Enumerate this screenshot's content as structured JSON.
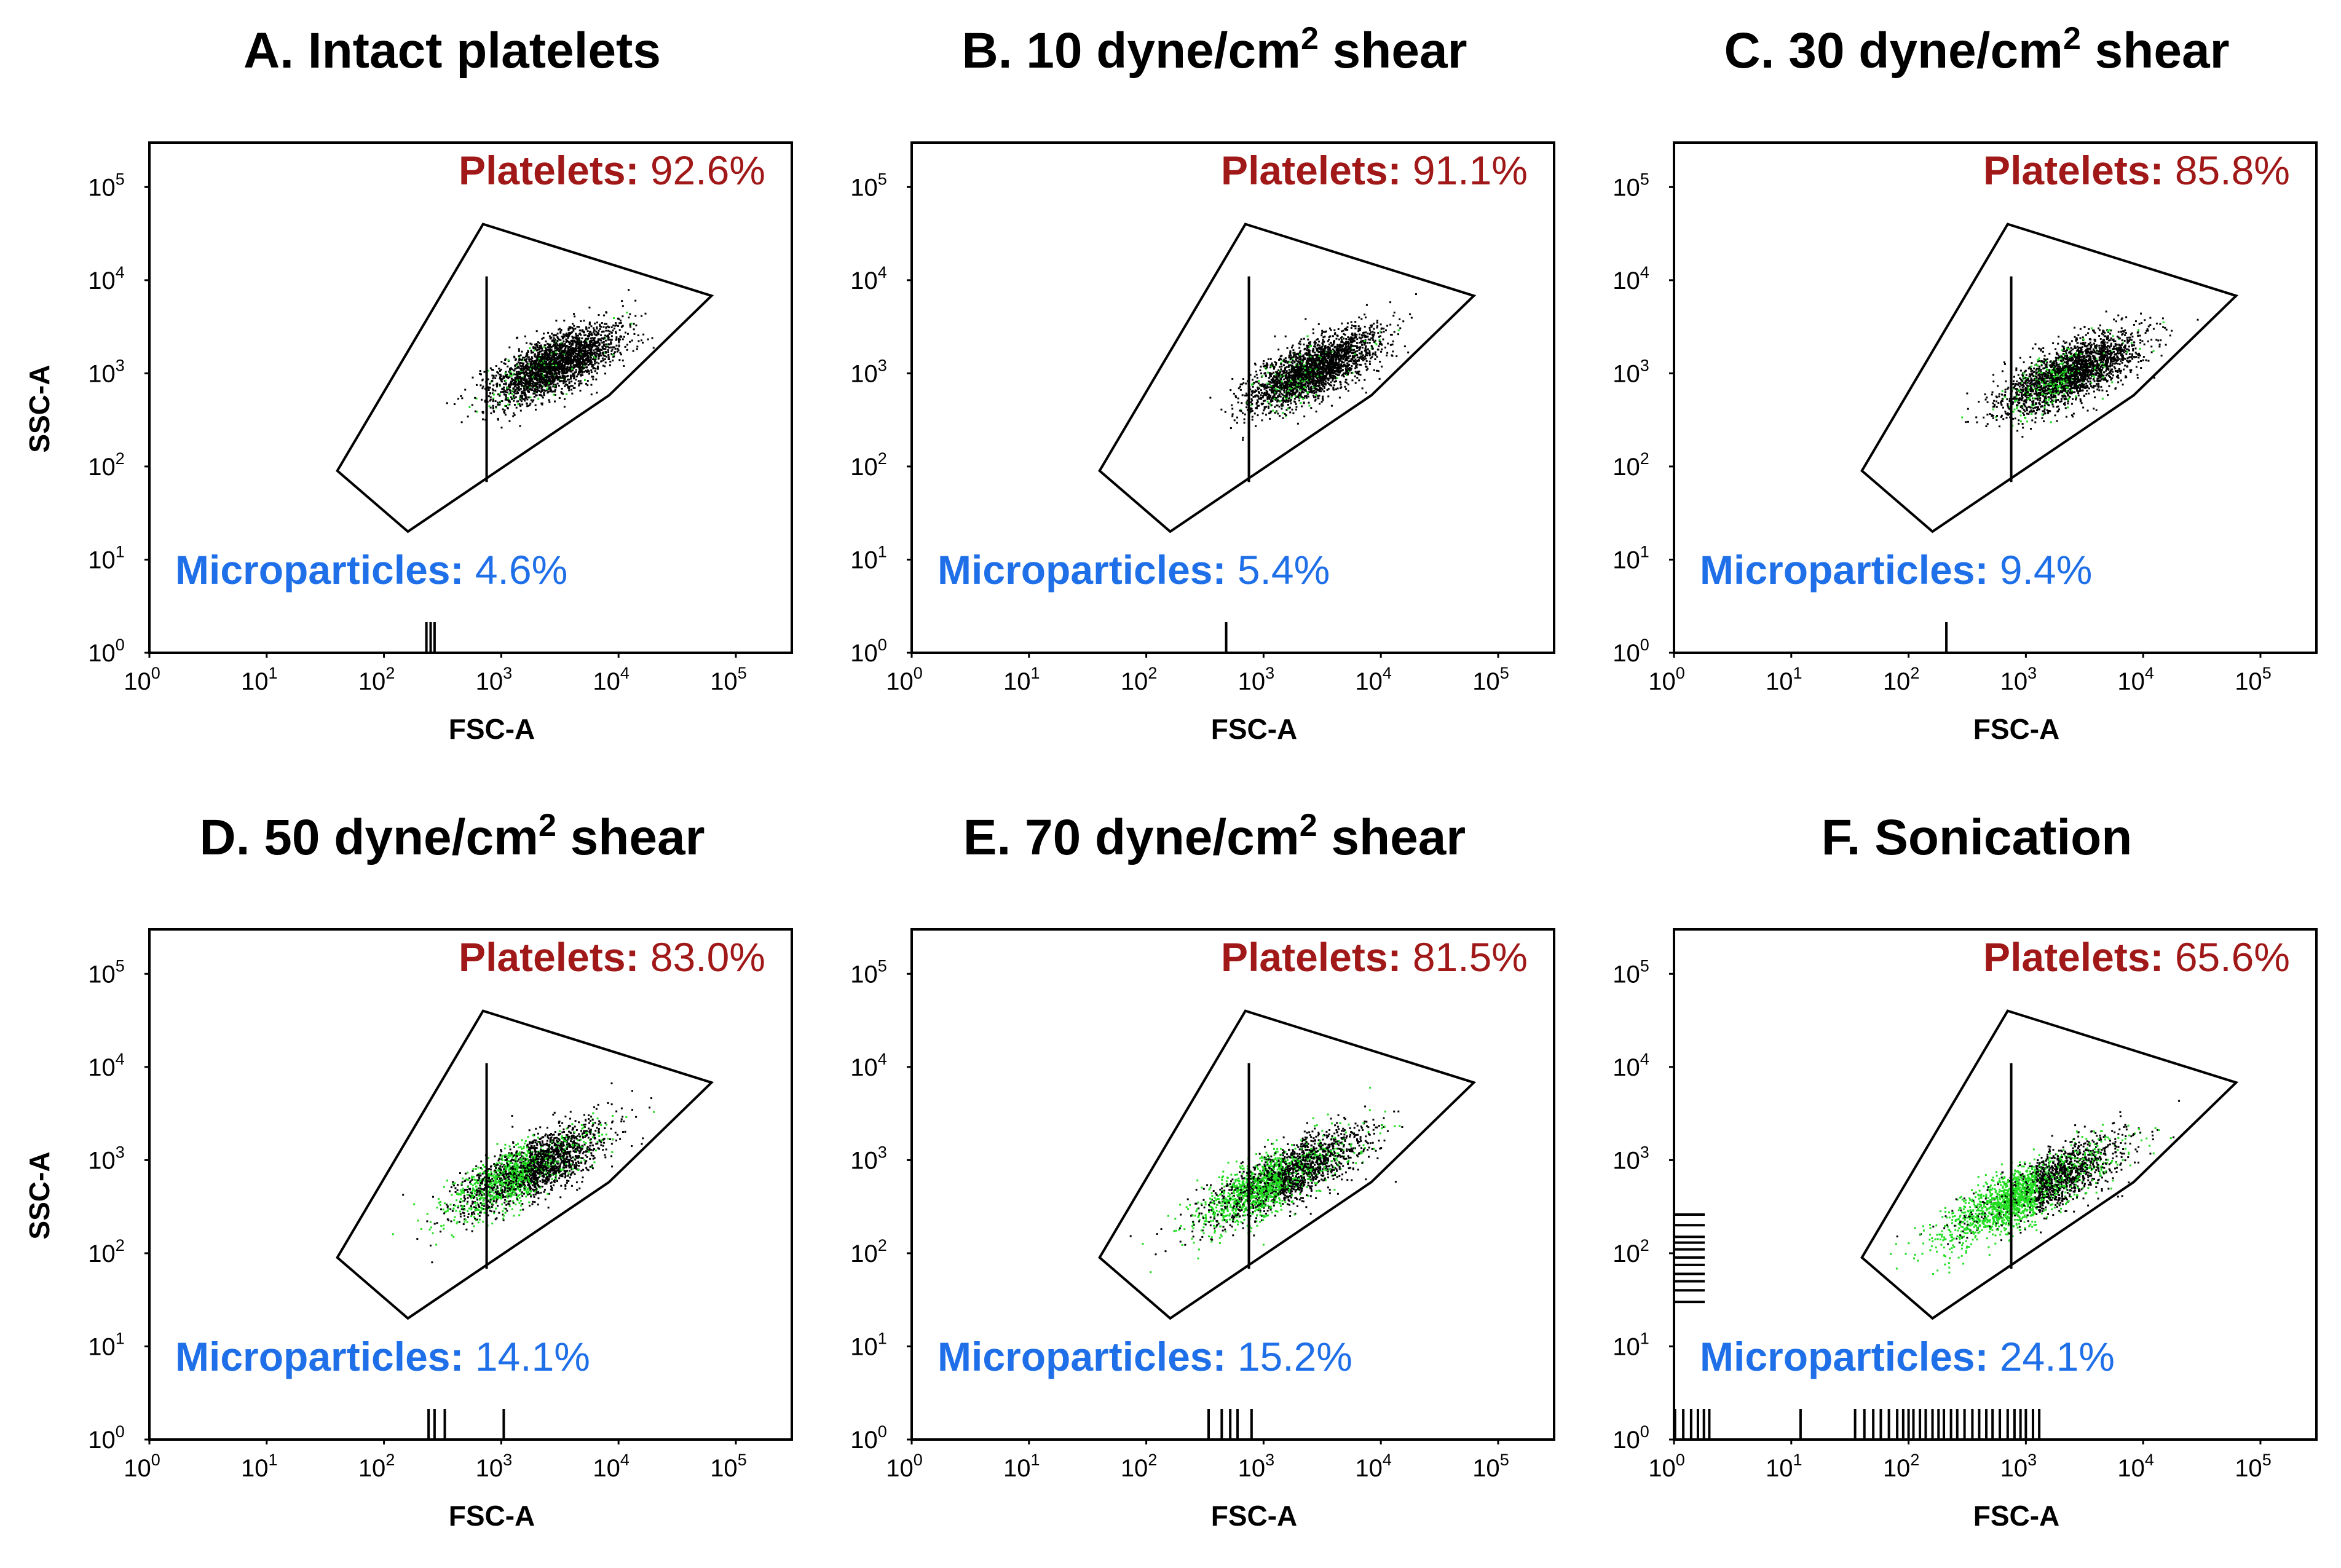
{
  "chart_data": [
    {
      "type": "scatter",
      "title": "A. Intact platelets",
      "title_main": "A. Intact platelets",
      "title_sup": "",
      "title_tail": "",
      "xlabel": "FSC-A",
      "ylabel": "SSC-A",
      "xscale": "log",
      "yscale": "log",
      "xlim": [
        1,
        300000
      ],
      "ylim": [
        1,
        300000
      ],
      "x_ticks": [
        "10^0",
        "10^1",
        "10^2",
        "10^3",
        "10^4",
        "10^5"
      ],
      "y_ticks": [
        "10^0",
        "10^1",
        "10^2",
        "10^3",
        "10^4",
        "10^5"
      ],
      "platelets_label": "Platelets:",
      "platelets_value": "92.6%",
      "microparticles_label": "Microparticles:",
      "microparticles_value": "4.6%",
      "gate_polygon": [
        [
          40,
          90
        ],
        [
          700,
          40000
        ],
        [
          62000,
          6800
        ],
        [
          8300,
          580
        ],
        [
          160,
          20
        ]
      ],
      "gate_divider_fsc": 750,
      "population_center": [
        2800,
        1250
      ],
      "green_fraction": 0.05,
      "axis_events_fsc": [
        230,
        250,
        270
      ],
      "axis_events_ssc": []
    },
    {
      "type": "scatter",
      "title": "B. 10 dyne/cm2 shear",
      "title_main": "B. 10 dyne/cm",
      "title_sup": "2",
      "title_tail": " shear",
      "xlabel": "FSC-A",
      "ylabel": "",
      "xscale": "log",
      "yscale": "log",
      "xlim": [
        1,
        300000
      ],
      "ylim": [
        1,
        300000
      ],
      "x_ticks": [
        "10^0",
        "10^1",
        "10^2",
        "10^3",
        "10^4",
        "10^5"
      ],
      "y_ticks": [
        "10^0",
        "10^1",
        "10^2",
        "10^3",
        "10^4",
        "10^5"
      ],
      "platelets_label": "Platelets:",
      "platelets_value": "91.1%",
      "microparticles_label": "Microparticles:",
      "microparticles_value": "5.4%",
      "gate_polygon": [
        [
          40,
          90
        ],
        [
          700,
          40000
        ],
        [
          62000,
          6800
        ],
        [
          8300,
          580
        ],
        [
          160,
          20
        ]
      ],
      "gate_divider_fsc": 750,
      "population_center": [
        2600,
        1100
      ],
      "green_fraction": 0.06,
      "axis_events_fsc": [
        480
      ],
      "axis_events_ssc": []
    },
    {
      "type": "scatter",
      "title": "C. 30 dyne/cm2 shear",
      "title_main": "C. 30 dyne/cm",
      "title_sup": "2",
      "title_tail": " shear",
      "xlabel": "FSC-A",
      "ylabel": "",
      "xscale": "log",
      "yscale": "log",
      "xlim": [
        1,
        300000
      ],
      "ylim": [
        1,
        300000
      ],
      "x_ticks": [
        "10^0",
        "10^1",
        "10^2",
        "10^3",
        "10^4",
        "10^5"
      ],
      "y_ticks": [
        "10^0",
        "10^1",
        "10^2",
        "10^3",
        "10^4",
        "10^5"
      ],
      "platelets_label": "Platelets:",
      "platelets_value": "85.8%",
      "microparticles_label": "Microparticles:",
      "microparticles_value": "9.4%",
      "gate_polygon": [
        [
          40,
          90
        ],
        [
          700,
          40000
        ],
        [
          62000,
          6800
        ],
        [
          8300,
          580
        ],
        [
          160,
          20
        ]
      ],
      "gate_divider_fsc": 750,
      "population_center": [
        2300,
        1000
      ],
      "green_fraction": 0.12,
      "axis_events_fsc": [
        210
      ],
      "axis_events_ssc": []
    },
    {
      "type": "scatter",
      "title": "D. 50 dyne/cm2 shear",
      "title_main": "D. 50 dyne/cm",
      "title_sup": "2",
      "title_tail": " shear",
      "xlabel": "FSC-A",
      "ylabel": "SSC-A",
      "xscale": "log",
      "yscale": "log",
      "xlim": [
        1,
        300000
      ],
      "ylim": [
        1,
        300000
      ],
      "x_ticks": [
        "10^0",
        "10^1",
        "10^2",
        "10^3",
        "10^4",
        "10^5"
      ],
      "y_ticks": [
        "10^0",
        "10^1",
        "10^2",
        "10^3",
        "10^4",
        "10^5"
      ],
      "platelets_label": "Platelets:",
      "platelets_value": "83.0%",
      "microparticles_label": "Microparticles:",
      "microparticles_value": "14.1%",
      "gate_polygon": [
        [
          40,
          90
        ],
        [
          700,
          40000
        ],
        [
          62000,
          6800
        ],
        [
          8300,
          580
        ],
        [
          160,
          20
        ]
      ],
      "gate_divider_fsc": 750,
      "population_center": [
        1700,
        800
      ],
      "green_fraction": 0.32,
      "axis_events_fsc": [
        240,
        270,
        330,
        1050
      ],
      "axis_events_ssc": []
    },
    {
      "type": "scatter",
      "title": "E. 70 dyne/cm2 shear",
      "title_main": "E. 70 dyne/cm",
      "title_sup": "2",
      "title_tail": " shear",
      "xlabel": "FSC-A",
      "ylabel": "",
      "xscale": "log",
      "yscale": "log",
      "xlim": [
        1,
        300000
      ],
      "ylim": [
        1,
        300000
      ],
      "x_ticks": [
        "10^0",
        "10^1",
        "10^2",
        "10^3",
        "10^4",
        "10^5"
      ],
      "y_ticks": [
        "10^0",
        "10^1",
        "10^2",
        "10^3",
        "10^4",
        "10^5"
      ],
      "platelets_label": "Platelets:",
      "platelets_value": "81.5%",
      "microparticles_label": "Microparticles:",
      "microparticles_value": "15.2%",
      "gate_polygon": [
        [
          40,
          90
        ],
        [
          700,
          40000
        ],
        [
          62000,
          6800
        ],
        [
          8300,
          580
        ],
        [
          160,
          20
        ]
      ],
      "gate_divider_fsc": 750,
      "population_center": [
        1400,
        650
      ],
      "green_fraction": 0.4,
      "axis_events_fsc": [
        340,
        440,
        520,
        600,
        790
      ],
      "axis_events_ssc": []
    },
    {
      "type": "scatter",
      "title": "F. Sonication",
      "title_main": "F. Sonication",
      "title_sup": "",
      "title_tail": "",
      "xlabel": "FSC-A",
      "ylabel": "",
      "xscale": "log",
      "yscale": "log",
      "xlim": [
        1,
        300000
      ],
      "ylim": [
        1,
        300000
      ],
      "x_ticks": [
        "10^0",
        "10^1",
        "10^2",
        "10^3",
        "10^4",
        "10^5"
      ],
      "y_ticks": [
        "10^0",
        "10^1",
        "10^2",
        "10^3",
        "10^4",
        "10^5"
      ],
      "platelets_label": "Platelets:",
      "platelets_value": "65.6%",
      "microparticles_label": "Microparticles:",
      "microparticles_value": "24.1%",
      "gate_polygon": [
        [
          40,
          90
        ],
        [
          700,
          40000
        ],
        [
          62000,
          6800
        ],
        [
          8300,
          580
        ],
        [
          160,
          20
        ]
      ],
      "gate_divider_fsc": 750,
      "population_center": [
        1200,
        500
      ],
      "green_fraction": 0.55,
      "axis_events_fsc": [
        1,
        1.2,
        1.4,
        1.6,
        1.8,
        2,
        12,
        35,
        42,
        50,
        58,
        68,
        80,
        90,
        100,
        110,
        125,
        140,
        160,
        180,
        200,
        230,
        260,
        300,
        350,
        400,
        460,
        520,
        600,
        700,
        800,
        900,
        1000,
        1150,
        1300
      ],
      "axis_events_ssc": [
        30,
        40,
        50,
        60,
        75,
        90,
        110,
        130,
        150,
        200,
        260
      ]
    }
  ]
}
